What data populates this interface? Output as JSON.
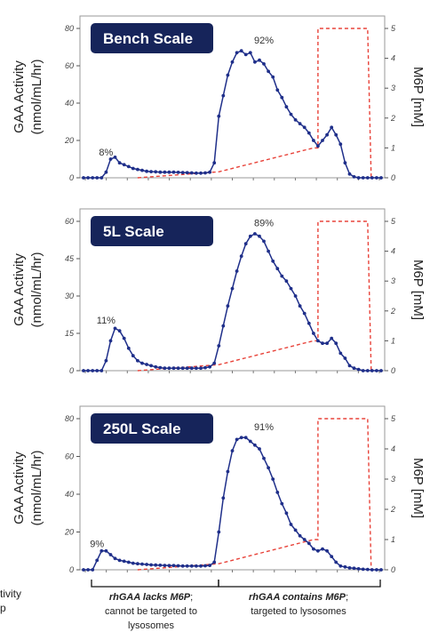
{
  "colors": {
    "activity": "#1f2f8a",
    "m6p": "#e8433a",
    "badge": "#16245a"
  },
  "y_left_label_line1": "GAA Activity",
  "y_left_label_line2": "(nmol/mL/hr)",
  "y_right_label": "M6P [mM]",
  "chart_data": [
    {
      "type": "line",
      "badge": "Bench Scale",
      "ylim_left": [
        0,
        80
      ],
      "yticks_left": [
        "0",
        "20",
        "40",
        "60",
        "80"
      ],
      "ylim_right": [
        0,
        5
      ],
      "yticks_right": [
        "0",
        "1",
        "2",
        "3",
        "4",
        "5"
      ],
      "annotations": [
        {
          "text": "8%",
          "x": 5,
          "y": 12
        },
        {
          "text": "92%",
          "x": 40,
          "y": 72
        }
      ],
      "series": [
        {
          "axis": "left",
          "x": [
            0,
            1,
            2,
            3,
            4,
            5,
            6,
            7,
            8,
            9,
            10,
            11,
            12,
            13,
            14,
            15,
            16,
            17,
            18,
            19,
            20,
            21,
            22,
            23,
            24,
            25,
            26,
            27,
            28,
            29,
            30,
            31,
            32,
            33,
            34,
            35,
            36,
            37,
            38,
            39,
            40,
            41,
            42,
            43,
            44,
            45,
            46,
            47,
            48,
            49,
            50,
            51,
            52,
            53,
            54,
            55,
            56,
            57,
            58,
            59,
            60,
            61,
            62,
            63,
            64,
            65,
            66
          ],
          "values": [
            0,
            0,
            0,
            0,
            0,
            3,
            10,
            11,
            8,
            7,
            6,
            5,
            4.5,
            4,
            3.5,
            3.3,
            3.2,
            3,
            3,
            3,
            3,
            2.9,
            2.8,
            2.7,
            2.6,
            2.5,
            2.5,
            2.6,
            3,
            8,
            33,
            44,
            55,
            62,
            67,
            68,
            66,
            67,
            62,
            63,
            61,
            57,
            54,
            47,
            43,
            38,
            34,
            31,
            29,
            27,
            24,
            20,
            17,
            20,
            23,
            27,
            23,
            18,
            8,
            2,
            0.5,
            0,
            0,
            0,
            0,
            0,
            0
          ]
        },
        {
          "axis": "right",
          "x": [
            12,
            30,
            51,
            52,
            52,
            63,
            63.8
          ],
          "values": [
            0,
            0.2,
            1,
            1,
            5,
            5,
            0
          ]
        }
      ]
    },
    {
      "type": "line",
      "badge": "5L Scale",
      "ylim_left": [
        0,
        60
      ],
      "yticks_left": [
        "0",
        "15",
        "30",
        "45",
        "60"
      ],
      "ylim_right": [
        0,
        5
      ],
      "yticks_right": [
        "0",
        "1",
        "2",
        "3",
        "4",
        "5"
      ],
      "annotations": [
        {
          "text": "11%",
          "x": 5,
          "y": 19
        },
        {
          "text": "89%",
          "x": 40,
          "y": 58
        }
      ],
      "series": [
        {
          "axis": "left",
          "x": [
            0,
            1,
            2,
            3,
            4,
            5,
            6,
            7,
            8,
            9,
            10,
            11,
            12,
            13,
            14,
            15,
            16,
            17,
            18,
            19,
            20,
            21,
            22,
            23,
            24,
            25,
            26,
            27,
            28,
            29,
            30,
            31,
            32,
            33,
            34,
            35,
            36,
            37,
            38,
            39,
            40,
            41,
            42,
            43,
            44,
            45,
            46,
            47,
            48,
            49,
            50,
            51,
            52,
            53,
            54,
            55,
            56,
            57,
            58,
            59,
            60,
            61,
            62,
            63,
            64,
            65,
            66
          ],
          "values": [
            0,
            0,
            0,
            0,
            0,
            4,
            12,
            17,
            16,
            13,
            9,
            6,
            4,
            3,
            2.5,
            2,
            1.5,
            1.2,
            1,
            1,
            1,
            1,
            1,
            1,
            1,
            1,
            1,
            1.2,
            1.5,
            3,
            10,
            18,
            26,
            33,
            40,
            46,
            51,
            54,
            55,
            54,
            52,
            48,
            44,
            41,
            38,
            36,
            33,
            30,
            26,
            23,
            19,
            15,
            12,
            11,
            11,
            13,
            11,
            7,
            5,
            2,
            1,
            0.5,
            0,
            0,
            0,
            0,
            0
          ]
        },
        {
          "axis": "right",
          "x": [
            12,
            30,
            51,
            52,
            52,
            63,
            63.8
          ],
          "values": [
            0,
            0.2,
            1,
            1,
            5,
            5,
            0
          ]
        }
      ]
    },
    {
      "type": "line",
      "badge": "250L Scale",
      "ylim_left": [
        0,
        80
      ],
      "yticks_left": [
        "0",
        "20",
        "40",
        "60",
        "80"
      ],
      "ylim_right": [
        0,
        5
      ],
      "yticks_right": [
        "0",
        "1",
        "2",
        "3",
        "4",
        "5"
      ],
      "annotations": [
        {
          "text": "9%",
          "x": 3,
          "y": 12
        },
        {
          "text": "91%",
          "x": 40,
          "y": 74
        }
      ],
      "series": [
        {
          "axis": "left",
          "x": [
            0,
            1,
            2,
            3,
            4,
            5,
            6,
            7,
            8,
            9,
            10,
            11,
            12,
            13,
            14,
            15,
            16,
            17,
            18,
            19,
            20,
            21,
            22,
            23,
            24,
            25,
            26,
            27,
            28,
            29,
            30,
            31,
            32,
            33,
            34,
            35,
            36,
            37,
            38,
            39,
            40,
            41,
            42,
            43,
            44,
            45,
            46,
            47,
            48,
            49,
            50,
            51,
            52,
            53,
            54,
            55,
            56,
            57,
            58,
            59,
            60,
            61,
            62,
            63,
            64,
            65,
            66
          ],
          "values": [
            0,
            0,
            0,
            5,
            10,
            10,
            8,
            6,
            5,
            4.5,
            4,
            3.5,
            3.2,
            3,
            2.8,
            2.6,
            2.5,
            2.4,
            2.3,
            2.2,
            2.2,
            2.1,
            2,
            2,
            2,
            2,
            2,
            2.1,
            2.3,
            4,
            20,
            38,
            52,
            63,
            69,
            70,
            70,
            68,
            66,
            64,
            59,
            54,
            48,
            41,
            35,
            30,
            24,
            21,
            18,
            16,
            14,
            11,
            10,
            11,
            10,
            7,
            4,
            2,
            1.5,
            1,
            0.8,
            0.5,
            0.3,
            0.2,
            0,
            0,
            0
          ]
        },
        {
          "axis": "right",
          "x": [
            12,
            30,
            51,
            52,
            52,
            63,
            63.8
          ],
          "values": [
            0,
            0.2,
            1,
            1,
            5,
            5,
            0
          ]
        }
      ]
    }
  ],
  "bottom_notes": {
    "left_line1_bold": "rhGAA lacks M6P",
    "left_line1_tail": ";",
    "left_line2": "cannot be targeted to",
    "left_line3": "lysosomes",
    "right_line1_bold": "rhGAA contains M6P",
    "right_line1_tail": ";",
    "right_line2": "targeted to lysosomes"
  },
  "edge_text_line1": "tivity",
  "edge_text_line2": "p"
}
